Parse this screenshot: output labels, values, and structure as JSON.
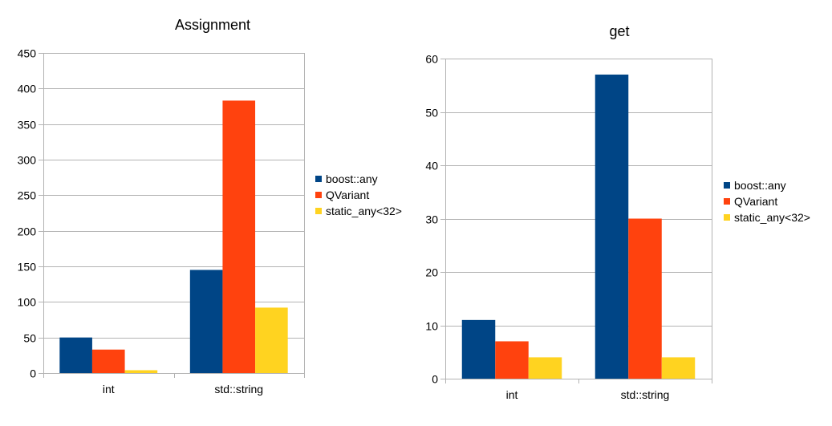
{
  "colors": {
    "series": [
      "#004586",
      "#ff420e",
      "#ffd320"
    ],
    "grid": "#b3b3b3",
    "axis": "#b3b3b3"
  },
  "chart_data": [
    {
      "type": "bar",
      "title": "Assignment",
      "categories": [
        "int",
        "std::string"
      ],
      "series": [
        {
          "name": "boost::any",
          "values": [
            50,
            145
          ]
        },
        {
          "name": "QVariant",
          "values": [
            33,
            383
          ]
        },
        {
          "name": "static_any<32>",
          "values": [
            4,
            92
          ]
        }
      ],
      "ylim": [
        0,
        450
      ],
      "yticks": [
        0,
        50,
        100,
        150,
        200,
        250,
        300,
        350,
        400,
        450
      ],
      "xlabel": "",
      "ylabel": "",
      "grid": true,
      "legend": "right"
    },
    {
      "type": "bar",
      "title": "get",
      "categories": [
        "int",
        "std::string"
      ],
      "series": [
        {
          "name": "boost::any",
          "values": [
            11,
            57
          ]
        },
        {
          "name": "QVariant",
          "values": [
            7,
            30
          ]
        },
        {
          "name": "static_any<32>",
          "values": [
            4,
            4
          ]
        }
      ],
      "ylim": [
        0,
        60
      ],
      "yticks": [
        0,
        10,
        20,
        30,
        40,
        50,
        60
      ],
      "xlabel": "",
      "ylabel": "",
      "grid": true,
      "legend": "right"
    }
  ]
}
